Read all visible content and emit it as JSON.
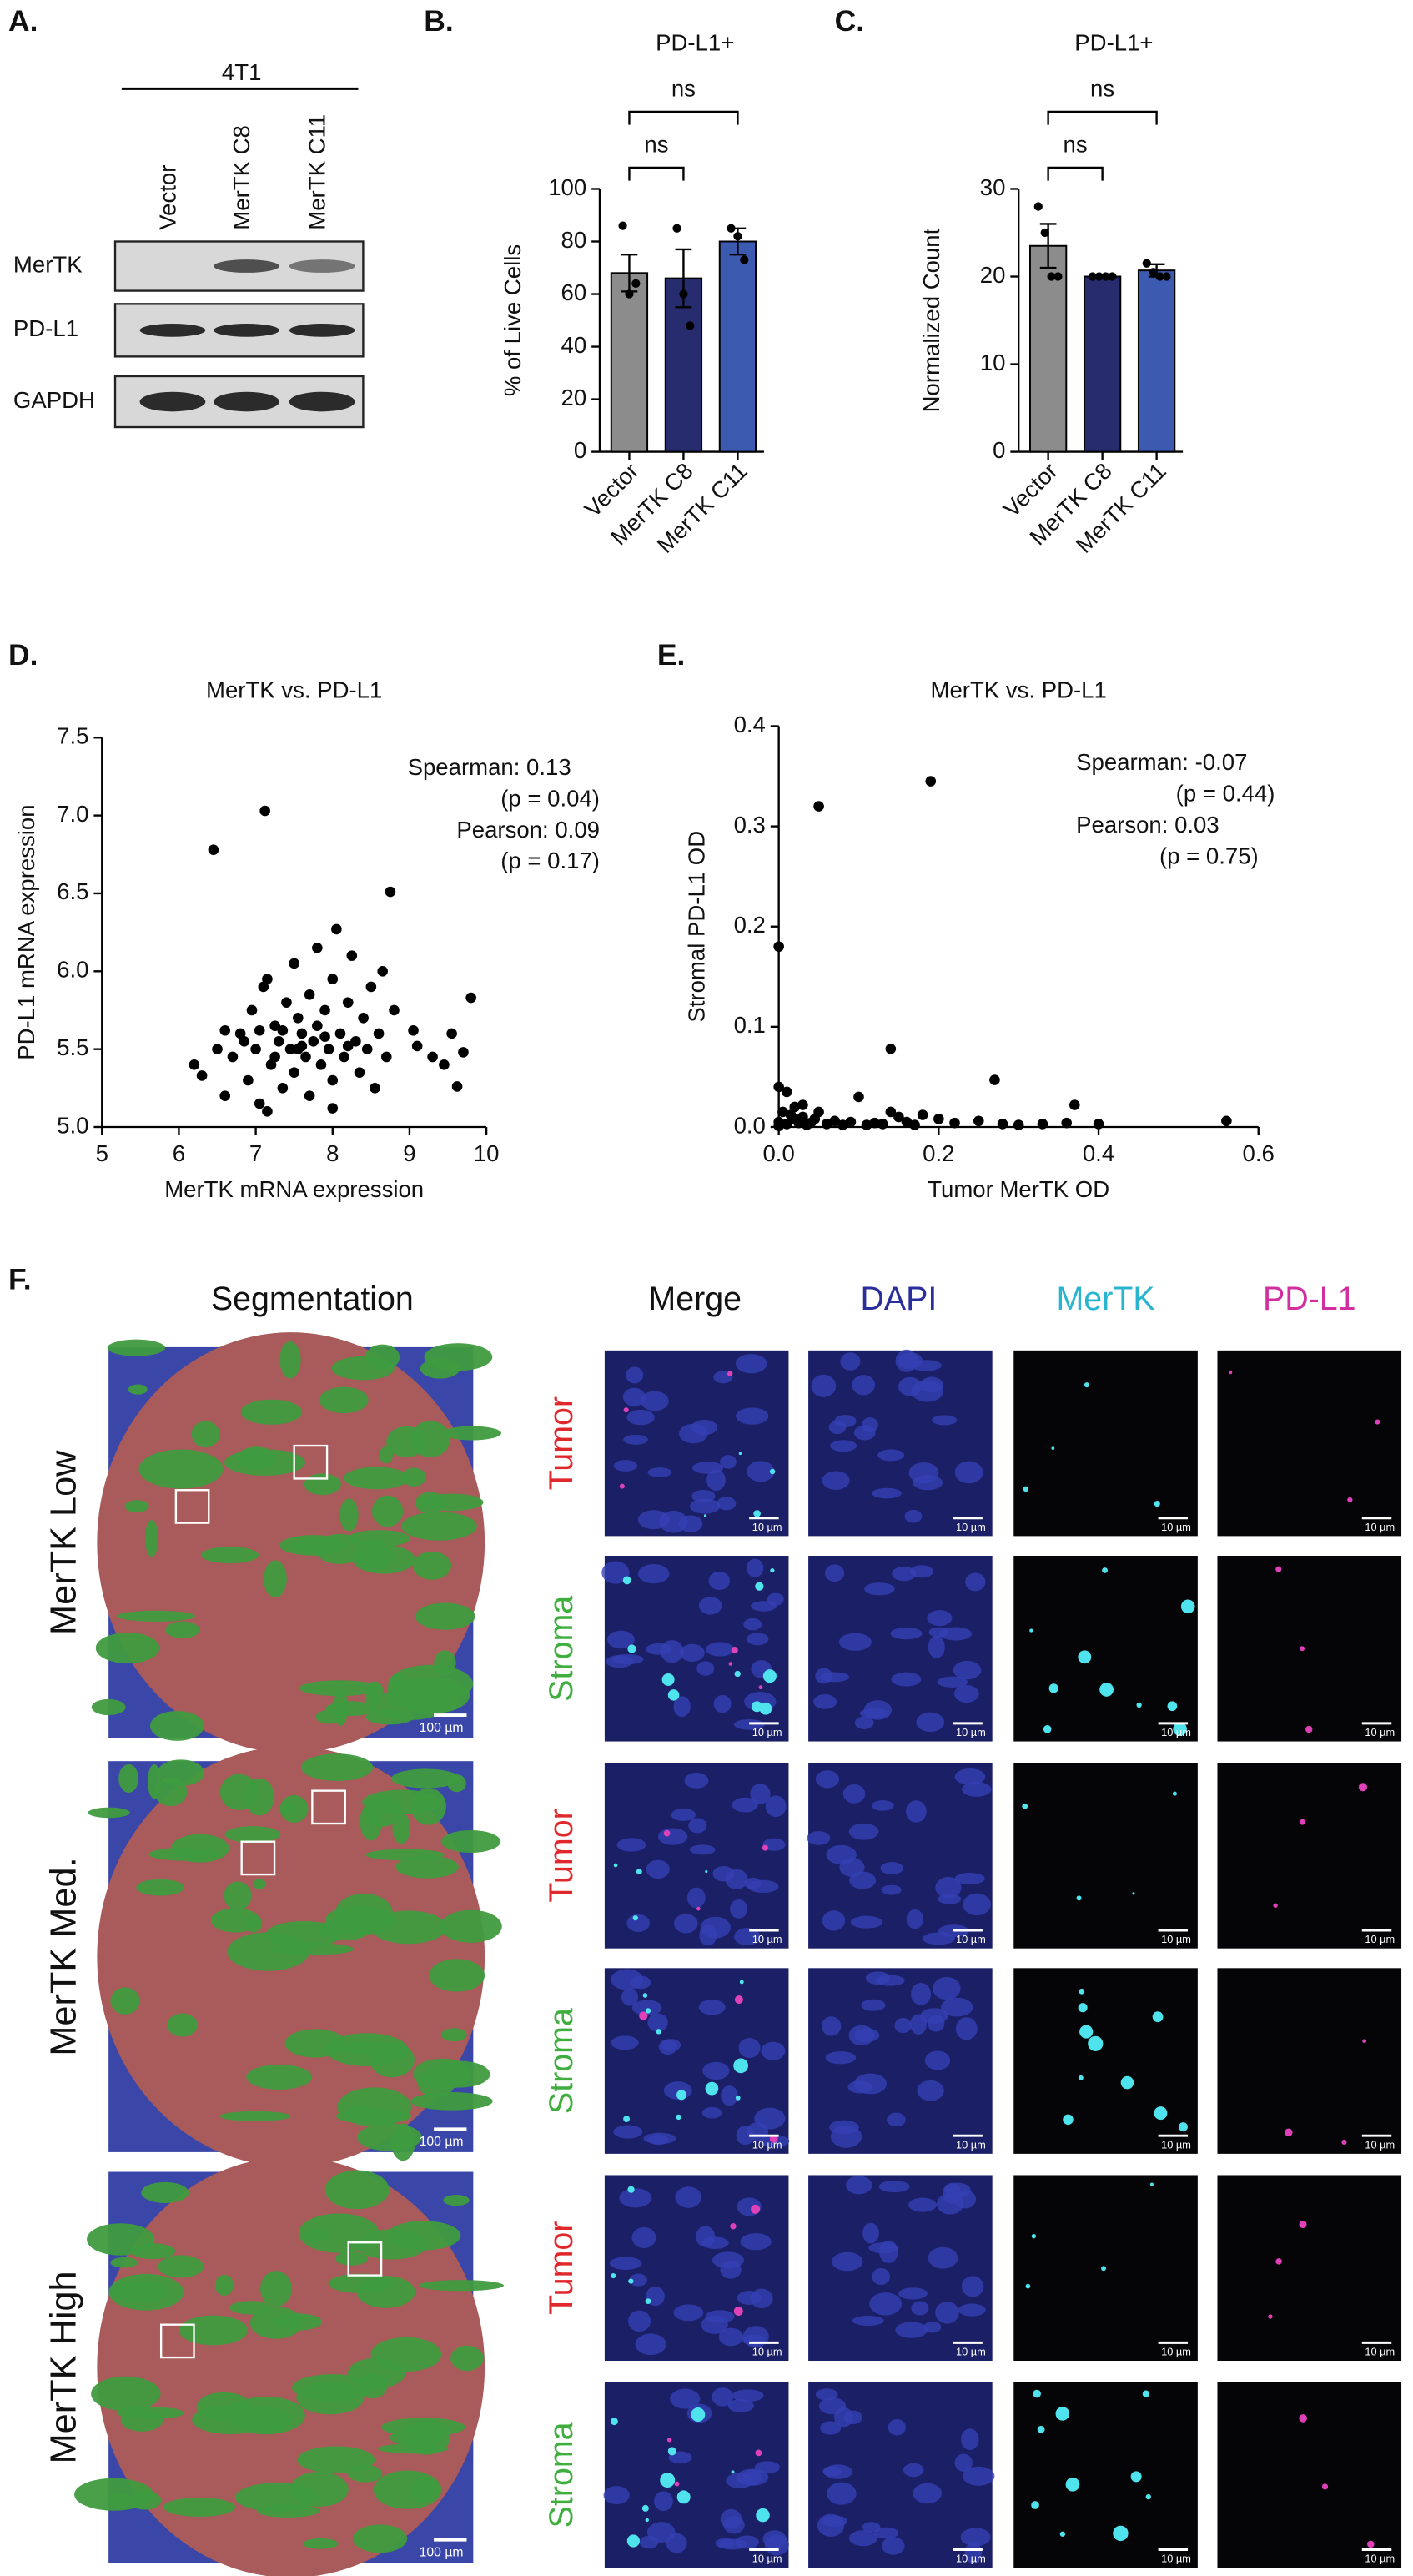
{
  "panel_labels": {
    "a": "A.",
    "b": "B.",
    "c": "C.",
    "d": "D.",
    "e": "E.",
    "f": "F."
  },
  "blot": {
    "cell_line": "4T1",
    "lanes": [
      "Vector",
      "MerTK C8",
      "MerTK C11"
    ],
    "rows": [
      "MerTK",
      "PD-L1",
      "GAPDH"
    ]
  },
  "chart_data": [
    {
      "type": "bar",
      "title": "PD-L1+",
      "y_label": "% of Live Cells",
      "categories": [
        "Vector",
        "MerTK C8",
        "MerTK C11"
      ],
      "values": [
        68,
        66,
        80
      ],
      "errors": [
        7,
        11,
        5
      ],
      "points": [
        [
          86,
          60,
          64
        ],
        [
          85,
          60,
          48
        ],
        [
          85,
          82,
          73
        ]
      ],
      "colors": [
        "#8c8c8c",
        "#262c6e",
        "#3c5bb0"
      ],
      "ylim": [
        0,
        100
      ],
      "yticks": [
        0,
        20,
        40,
        60,
        80,
        100
      ],
      "comparisons": [
        {
          "label": "ns",
          "between": [
            "Vector",
            "MerTK C8"
          ]
        },
        {
          "label": "ns",
          "between": [
            "Vector",
            "MerTK C11"
          ]
        }
      ]
    },
    {
      "type": "bar",
      "title": "PD-L1+",
      "y_label": "Normalized Count",
      "categories": [
        "Vector",
        "MerTK C8",
        "MerTK C11"
      ],
      "values": [
        23.5,
        20,
        20.7
      ],
      "errors": [
        2.5,
        0.1,
        0.7
      ],
      "points": [
        [
          28,
          25,
          20,
          20
        ],
        [
          20,
          20,
          20,
          20
        ],
        [
          21.5,
          20.5,
          20,
          20
        ]
      ],
      "colors": [
        "#8c8c8c",
        "#262c6e",
        "#3c5bb0"
      ],
      "ylim": [
        0,
        30
      ],
      "yticks": [
        0,
        10,
        20,
        30
      ],
      "comparisons": [
        {
          "label": "ns",
          "between": [
            "Vector",
            "MerTK C8"
          ]
        },
        {
          "label": "ns",
          "between": [
            "Vector",
            "MerTK C11"
          ]
        }
      ]
    },
    {
      "type": "scatter",
      "title": "MerTK vs. PD-L1",
      "x_label": "MerTK mRNA expression",
      "y_label": "PD-L1 mRNA expression",
      "annotations": [
        "Spearman: 0.13",
        "(p = 0.04)",
        "Pearson: 0.09",
        "(p = 0.17)"
      ],
      "color": "#000000",
      "x": [
        6.45,
        7.12,
        8.75,
        9.8,
        9.05,
        9.1,
        9.3,
        9.45,
        9.62,
        9.7,
        9.55,
        6.2,
        6.3,
        6.5,
        6.6,
        6.7,
        6.8,
        6.9,
        6.95,
        7.0,
        7.05,
        7.1,
        7.15,
        7.2,
        7.25,
        7.3,
        7.35,
        7.4,
        7.45,
        7.5,
        7.5,
        7.55,
        7.6,
        7.65,
        7.7,
        7.7,
        7.75,
        7.8,
        7.8,
        7.85,
        7.9,
        7.95,
        8.0,
        8.0,
        8.05,
        8.1,
        8.15,
        8.2,
        8.25,
        8.3,
        8.35,
        8.4,
        8.45,
        8.5,
        8.55,
        8.6,
        8.7,
        8.8,
        7.35,
        7.6,
        7.9,
        6.85,
        7.25,
        7.55,
        8.2,
        7.05,
        6.6,
        8.65,
        7.15,
        8.0
      ],
      "y": [
        6.78,
        7.03,
        6.51,
        5.83,
        5.62,
        5.52,
        5.45,
        5.4,
        5.26,
        5.48,
        5.6,
        5.4,
        5.33,
        5.5,
        5.2,
        5.45,
        5.6,
        5.3,
        5.75,
        5.5,
        5.15,
        5.9,
        5.95,
        5.4,
        5.65,
        5.55,
        5.25,
        5.8,
        5.5,
        6.05,
        5.35,
        5.7,
        5.6,
        5.45,
        5.85,
        5.2,
        5.55,
        6.15,
        5.65,
        5.4,
        5.75,
        5.5,
        5.95,
        5.3,
        6.27,
        5.6,
        5.45,
        5.8,
        6.1,
        5.55,
        5.35,
        5.7,
        5.5,
        5.9,
        5.25,
        5.6,
        5.45,
        5.75,
        5.62,
        5.52,
        5.58,
        5.55,
        5.45,
        5.5,
        5.52,
        5.62,
        5.62,
        6.0,
        5.1,
        5.12
      ],
      "xlim": [
        5,
        10
      ],
      "xticks": [
        5,
        6,
        7,
        8,
        9,
        10
      ],
      "ylim": [
        5,
        7.5
      ],
      "yticks": [
        {
          "value": 5,
          "label": "5.0"
        },
        5.5,
        {
          "value": 6,
          "label": "6.0"
        },
        6.5,
        {
          "value": 7,
          "label": "7.0"
        },
        7.5
      ]
    },
    {
      "type": "scatter",
      "title": "MerTK vs. PD-L1",
      "x_label": "Tumor MerTK OD",
      "y_label": "Stromal PD-L1 OD",
      "annotations": [
        "Spearman: -0.07",
        "(p = 0.44)",
        "Pearson: 0.03",
        "(p = 0.75)"
      ],
      "color": "#000000",
      "x": [
        0.05,
        0.19,
        0.0,
        0.14,
        0.27,
        0.56,
        0.37,
        0.1,
        0.0,
        0.01,
        0.02,
        0.03,
        0.0,
        0.01,
        0.02,
        0.04,
        0.05,
        0.06,
        0.07,
        0.08,
        0.09,
        0.11,
        0.12,
        0.13,
        0.15,
        0.16,
        0.18,
        0.2,
        0.22,
        0.25,
        0.28,
        0.3,
        0.33,
        0.36,
        0.4,
        0.005,
        0.015,
        0.025,
        0.035,
        0.0,
        0.045,
        0.14,
        0.17,
        0.03
      ],
      "y": [
        0.32,
        0.345,
        0.18,
        0.078,
        0.047,
        0.006,
        0.022,
        0.03,
        0.04,
        0.035,
        0.02,
        0.01,
        0.005,
        0.003,
        0.008,
        0.004,
        0.015,
        0.003,
        0.006,
        0.002,
        0.005,
        0.002,
        0.004,
        0.003,
        0.01,
        0.005,
        0.012,
        0.008,
        0.004,
        0.006,
        0.003,
        0.002,
        0.003,
        0.004,
        0.003,
        0.015,
        0.012,
        0.004,
        0.002,
        0.001,
        0.008,
        0.015,
        0.002,
        0.022
      ],
      "xlim": [
        0,
        0.6
      ],
      "xticks": [
        {
          "value": 0,
          "label": "0.0"
        },
        0.2,
        0.4,
        0.6
      ],
      "ylim": [
        0,
        0.4
      ],
      "yticks": [
        {
          "value": 0,
          "label": "0.0"
        },
        0.1,
        0.2,
        0.3,
        0.4
      ]
    }
  ],
  "microscopy": {
    "columns": [
      "Segmentation",
      "Merge",
      "DAPI",
      "MerTK",
      "PD-L1"
    ],
    "rows": [
      "MerTK Low",
      "MerTK Med.",
      "MerTK High"
    ],
    "regions": [
      "Tumor",
      "Stroma"
    ],
    "scale_bars": {
      "segmentation": "100 µm",
      "tile": "10 µm"
    }
  }
}
